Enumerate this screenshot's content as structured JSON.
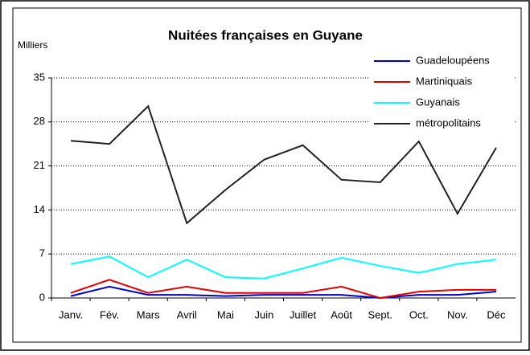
{
  "chart_data": {
    "type": "line",
    "title": "Nuitées françaises en Guyane",
    "y_axis_label": "Milliers",
    "categories": [
      "Janv.",
      "Fév.",
      "Mars",
      "Avril",
      "Mai",
      "Juin",
      "Juillet",
      "Août",
      "Sept.",
      "Oct.",
      "Nov.",
      "Déc"
    ],
    "series": [
      {
        "name": "Guadeloupéens",
        "color": "#0000cc",
        "values": [
          0.3,
          1.8,
          0.5,
          0.5,
          0.3,
          0.5,
          0.5,
          0.5,
          0,
          0.5,
          0.5,
          1.0
        ]
      },
      {
        "name": "Martiniquais",
        "color": "#e00000",
        "values": [
          0.8,
          2.9,
          0.8,
          1.8,
          0.8,
          0.8,
          0.8,
          1.8,
          0,
          1.0,
          1.3,
          1.3
        ]
      },
      {
        "name": "Guyanais",
        "color": "#00ffff",
        "values": [
          5.4,
          6.6,
          3.3,
          6.1,
          3.3,
          3.1,
          4.7,
          6.4,
          5.1,
          4.0,
          5.4,
          6.1
        ]
      },
      {
        "name": "métropolitains",
        "color": "#222222",
        "values": [
          25.0,
          24.5,
          30.5,
          11.9,
          17.2,
          22.0,
          24.3,
          18.8,
          18.4,
          24.9,
          13.4,
          23.9
        ]
      }
    ],
    "ylim": [
      0,
      35
    ],
    "yticks": [
      0,
      7,
      14,
      21,
      28,
      35
    ],
    "grid": true,
    "legend": "upper right"
  }
}
